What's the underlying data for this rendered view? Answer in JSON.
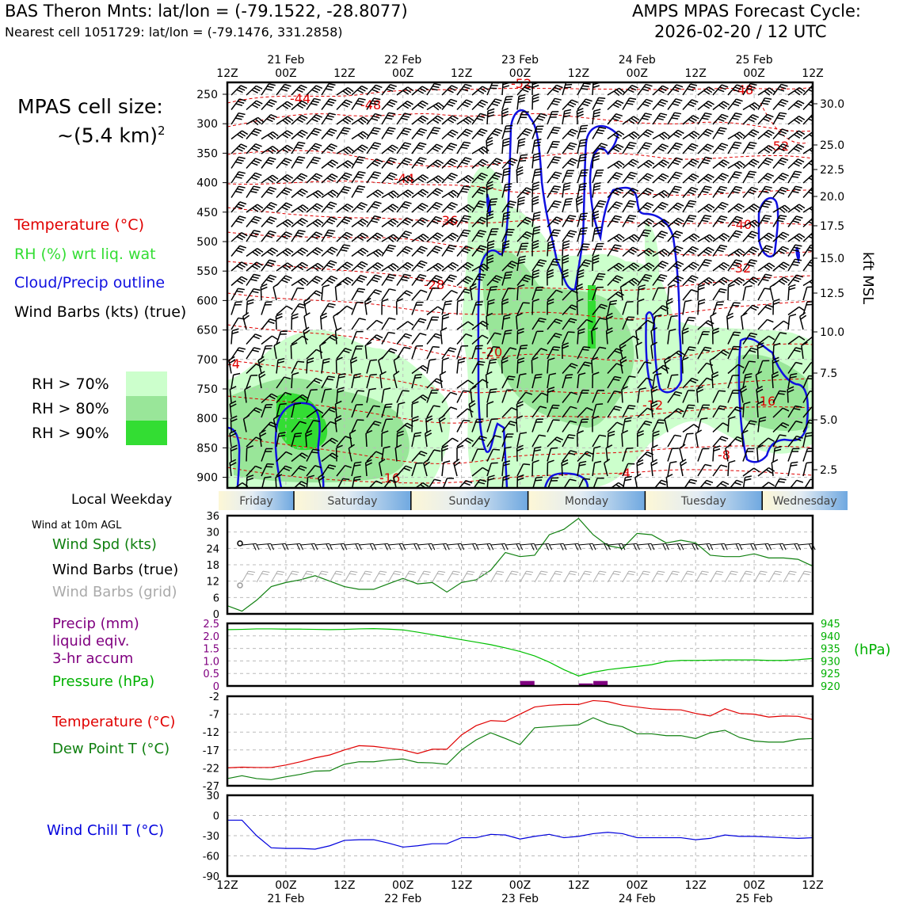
{
  "header": {
    "station_line": "BAS Theron Mnts: lat/lon = (-79.1522, -28.8077)",
    "cell_line": "Nearest cell 1051729: lat/lon = (-79.1476, 331.2858)",
    "forecast_title": "AMPS MPAS Forecast Cycle:",
    "forecast_cycle": "2026-02-20 / 12 UTC"
  },
  "left_panel": {
    "cell_size_label": "MPAS cell size:",
    "cell_size_value": "~(5.4 km)",
    "cell_size_exp": "2",
    "legend_temp": "Temperature (°C)",
    "legend_rh": "RH (%) wrt liq. wat",
    "legend_cloud": "Cloud/Precip outline",
    "legend_wind": "Wind Barbs (kts) (true)",
    "rh70": "RH > 70%",
    "rh80": "RH > 80%",
    "rh90": "RH > 90%",
    "local_weekday": "Local Weekday",
    "wind_10m": "Wind at 10m AGL",
    "wind_spd": "Wind Spd (kts)",
    "wind_barbs_true": "Wind Barbs (true)",
    "wind_barbs_grid": "Wind Barbs (grid)",
    "precip_1": "Precip (mm)",
    "precip_2": "liquid eqiv.",
    "precip_3": "3-hr accum",
    "pressure": "Pressure (hPa)",
    "temp2": "Temperature (°C)",
    "dewpt": "Dew Point T (°C)",
    "windchill": "Wind Chill T (°C)"
  },
  "colors": {
    "temp": "#e00000",
    "rh_label": "#33dd33",
    "cloud": "#1010e0",
    "green_line": "#108010",
    "purple": "#800080",
    "rh70": "#ccffcc",
    "rh80": "#99e699",
    "rh90": "#33dd33",
    "pressure": "#00b000",
    "windchill": "#0000dd"
  },
  "chart_data": [
    {
      "type": "heatmap",
      "title": "Time-height cross section",
      "x_top_ticks": [
        "12Z",
        "00Z",
        "12Z",
        "00Z",
        "12Z",
        "00Z",
        "12Z",
        "00Z",
        "12Z",
        "00Z",
        "12Z"
      ],
      "x_top_dates": [
        "21 Feb",
        "22 Feb",
        "23 Feb",
        "24 Feb",
        "25 Feb"
      ],
      "y_pressure_ticks": [
        "250",
        "300",
        "350",
        "400",
        "450",
        "500",
        "550",
        "600",
        "650",
        "700",
        "750",
        "800",
        "850",
        "900"
      ],
      "y_right_ticks": [
        "30.0",
        "25.0",
        "22.5",
        "20.0",
        "17.5",
        "15.0",
        "12.5",
        "10.0",
        "7.5",
        "5.0",
        "2.5"
      ],
      "ylabel_right": "kft MSL",
      "temp_contour_labels": [
        "-44",
        "-48",
        "-52",
        "-48",
        "-44",
        "-36",
        "-28",
        "-20",
        "-4",
        "-16",
        "-12",
        "-16",
        "-8",
        "-4",
        "-40",
        "-32",
        "-52"
      ]
    },
    {
      "type": "bar",
      "title": "Local Weekday",
      "categories": [
        "Friday",
        "Saturday",
        "Sunday",
        "Monday",
        "Tuesday",
        "Wednesday"
      ]
    },
    {
      "type": "line",
      "title": "Wind Spd (kts)",
      "ylim": [
        0,
        36
      ],
      "y_ticks": [
        "36",
        "30",
        "24",
        "18",
        "12",
        "6",
        "0"
      ],
      "x": [
        0,
        1,
        2,
        3,
        4,
        5,
        6,
        7,
        8,
        9,
        10,
        11,
        12,
        13,
        14,
        15,
        16,
        17,
        18,
        19,
        20,
        21,
        22,
        23,
        24,
        25,
        26,
        27,
        28,
        29,
        30,
        31,
        32,
        33,
        34,
        35,
        36,
        37,
        38,
        39,
        40
      ],
      "values": [
        3,
        1,
        5,
        10,
        11.5,
        12.5,
        14,
        12,
        10,
        9,
        9,
        11,
        13,
        11,
        11.5,
        8,
        11.5,
        12.5,
        16,
        22.5,
        21,
        21.5,
        29,
        31,
        35,
        29,
        25,
        24,
        29.5,
        29,
        26,
        27,
        26,
        21.5,
        21,
        21,
        22,
        20.5,
        20.5,
        20,
        17.5
      ]
    },
    {
      "type": "line",
      "title": "Pressure (hPa) / Precip (mm)",
      "ylim_precip": [
        0,
        2.5
      ],
      "y_ticks_precip": [
        "2.5",
        "2.0",
        "1.5",
        "1.0",
        "0.5",
        "0"
      ],
      "ylim_pressure": [
        920,
        945
      ],
      "y_ticks_pressure": [
        "945",
        "940",
        "935",
        "930",
        "925",
        "920"
      ],
      "ylabel_right": "(hPa)",
      "x": [
        0,
        1,
        2,
        3,
        4,
        5,
        6,
        7,
        8,
        9,
        10,
        11,
        12,
        13,
        14,
        15,
        16,
        17,
        18,
        19,
        20,
        21,
        22,
        23,
        24,
        25,
        26,
        27,
        28,
        29,
        30,
        31,
        32,
        33,
        34,
        35,
        36,
        37,
        38,
        39,
        40
      ],
      "pressure": [
        942.5,
        942.6,
        942.8,
        942.8,
        942.7,
        942.7,
        942.6,
        942.5,
        942.6,
        942.8,
        942.9,
        942.7,
        942.4,
        941.5,
        940.5,
        939.5,
        938.5,
        937.5,
        936.5,
        935.2,
        933.8,
        932,
        929.5,
        926.5,
        924,
        925.5,
        926.5,
        927.2,
        927.8,
        928.5,
        929.8,
        930.2,
        930.2,
        930.3,
        930.4,
        930.4,
        930.4,
        930.2,
        930.2,
        930.5,
        931
      ],
      "precip_bars": [
        {
          "x": 20.5,
          "value": 0.2
        },
        {
          "x": 24.5,
          "value": 0.1
        },
        {
          "x": 25.5,
          "value": 0.2
        }
      ]
    },
    {
      "type": "line",
      "title": "Temperature / Dew Point (°C)",
      "ylim": [
        -27,
        -2
      ],
      "y_ticks": [
        "-2",
        "-7",
        "-12",
        "-17",
        "-22",
        "-27"
      ],
      "x": [
        0,
        1,
        2,
        3,
        4,
        5,
        6,
        7,
        8,
        9,
        10,
        11,
        12,
        13,
        14,
        15,
        16,
        17,
        18,
        19,
        20,
        21,
        22,
        23,
        24,
        25,
        26,
        27,
        28,
        29,
        30,
        31,
        32,
        33,
        34,
        35,
        36,
        37,
        38,
        39,
        40
      ],
      "series": [
        {
          "name": "Temperature",
          "values": [
            -22,
            -21.8,
            -21.9,
            -21.9,
            -21.2,
            -20.3,
            -19.2,
            -18.4,
            -17,
            -15.8,
            -16,
            -16.5,
            -17,
            -18,
            -16.8,
            -16.8,
            -12.8,
            -10.2,
            -8.8,
            -9,
            -7,
            -5,
            -4.5,
            -4.3,
            -4.3,
            -3.2,
            -3.5,
            -4.5,
            -5,
            -5.5,
            -5.7,
            -5.8,
            -6.8,
            -7.5,
            -5.5,
            -6.8,
            -7,
            -7.8,
            -7.5,
            -7.6,
            -8.5
          ]
        },
        {
          "name": "Dew Point",
          "values": [
            -25,
            -24.2,
            -25,
            -25.3,
            -24.5,
            -23.8,
            -22.9,
            -22.8,
            -21,
            -20.3,
            -20.3,
            -19.8,
            -19.5,
            -20.5,
            -20.6,
            -21,
            -17,
            -14.2,
            -12.2,
            -13.8,
            -15.5,
            -10.8,
            -10.5,
            -10.2,
            -10,
            -8,
            -9.7,
            -10.5,
            -12.5,
            -12.5,
            -13,
            -13,
            -13.8,
            -12.2,
            -11.5,
            -13.5,
            -14.5,
            -14.8,
            -14.8,
            -14,
            -13.8
          ]
        }
      ]
    },
    {
      "type": "line",
      "title": "Wind Chill T (°C)",
      "ylim": [
        -90,
        30
      ],
      "y_ticks": [
        "30",
        "0",
        "-30",
        "-60",
        "-90"
      ],
      "x": [
        0,
        1,
        2,
        3,
        4,
        5,
        6,
        7,
        8,
        9,
        10,
        11,
        12,
        13,
        14,
        15,
        16,
        17,
        18,
        19,
        20,
        21,
        22,
        23,
        24,
        25,
        26,
        27,
        28,
        29,
        30,
        31,
        32,
        33,
        34,
        35,
        36,
        37,
        38,
        39,
        40
      ],
      "values": [
        -7,
        -7,
        -30,
        -48,
        -49,
        -49,
        -50,
        -45,
        -37,
        -36,
        -36,
        -41,
        -47,
        -45,
        -42,
        -42,
        -33,
        -33,
        -28,
        -29,
        -35,
        -31,
        -28,
        -33,
        -31,
        -27,
        -25,
        -27,
        -33,
        -33,
        -33,
        -33,
        -36,
        -34,
        -29,
        -31,
        -31,
        -32,
        -33,
        -34,
        -33
      ]
    }
  ],
  "bottom_axis": {
    "ticks": [
      "12Z",
      "00Z",
      "12Z",
      "00Z",
      "12Z",
      "00Z",
      "12Z",
      "00Z",
      "12Z",
      "00Z",
      "12Z"
    ],
    "dates": [
      "21 Feb",
      "22 Feb",
      "23 Feb",
      "24 Feb",
      "25 Feb"
    ]
  }
}
